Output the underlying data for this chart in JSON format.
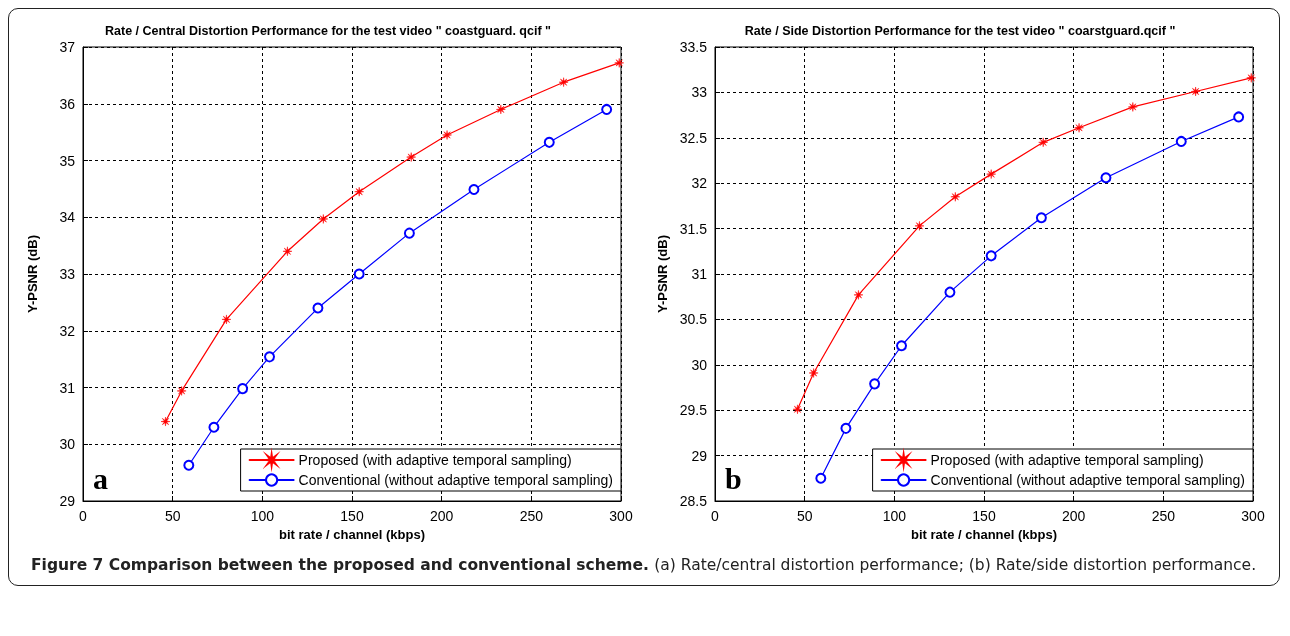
{
  "chart_data": [
    {
      "type": "line",
      "title": "Rate / Central Distortion Performance for the test video \" coastguard. qcif \"",
      "xlabel": "bit rate / channel (kbps)",
      "ylabel": "Y-PSNR (dB)",
      "xlim": [
        0,
        300
      ],
      "xticks": [
        0,
        50,
        100,
        150,
        200,
        250,
        300
      ],
      "ylim": [
        29,
        37
      ],
      "yticks": [
        29,
        30,
        31,
        32,
        33,
        34,
        35,
        36,
        37
      ],
      "grid": true,
      "legend": "bottom right",
      "line_style": "solid",
      "annotations": [
        "a",
        "Figure 7 Comparison between the proposed and conventional scheme.",
        "(a) Rate/central distortion performance; (b) Rate/side distortion performance."
      ],
      "series": [
        {
          "name": "Proposed (with adaptive temporal sampling)",
          "color": "#ff0000",
          "marker": "star",
          "x": [
            46,
            55,
            80,
            114,
            134,
            154,
            183,
            203,
            233,
            268,
            299
          ],
          "values": [
            30.4,
            30.94,
            32.2,
            33.4,
            33.97,
            34.45,
            35.06,
            35.45,
            35.9,
            36.38,
            36.72
          ]
        },
        {
          "name": "Conventional (without adaptive temporal sampling)",
          "color": "#0000ff",
          "marker": "circle",
          "x": [
            59,
            73,
            89,
            104,
            131,
            154,
            182,
            218,
            260,
            292
          ],
          "values": [
            29.63,
            30.3,
            30.98,
            31.54,
            32.4,
            33.0,
            33.72,
            34.49,
            35.32,
            35.9
          ]
        }
      ]
    },
    {
      "type": "line",
      "title": "Rate / Side Distortion Performance for the test video \" coarstguard.qcif \"",
      "xlabel": "bit rate / channel (kbps)",
      "ylabel": "Y-PSNR (dB)",
      "xlim": [
        0,
        300
      ],
      "xticks": [
        0,
        50,
        100,
        150,
        200,
        250,
        300
      ],
      "ylim": [
        28.5,
        33.5
      ],
      "yticks": [
        28.5,
        29,
        29.5,
        30,
        30.5,
        31,
        31.5,
        32,
        32.5,
        33,
        33.5
      ],
      "grid": true,
      "legend": "bottom right",
      "line_style": "solid",
      "annotations": [
        "b"
      ],
      "series": [
        {
          "name": "Proposed (with adaptive temporal sampling)",
          "color": "#ff0000",
          "marker": "star",
          "x": [
            46,
            55,
            80,
            114,
            134,
            154,
            183,
            203,
            233,
            268,
            299
          ],
          "values": [
            29.51,
            29.91,
            30.77,
            31.53,
            31.85,
            32.1,
            32.45,
            32.61,
            32.84,
            33.01,
            33.16
          ]
        },
        {
          "name": "Conventional (without adaptive temporal sampling)",
          "color": "#0000ff",
          "marker": "circle",
          "x": [
            59,
            73,
            89,
            104,
            131,
            154,
            182,
            218,
            260,
            292
          ],
          "values": [
            28.75,
            29.3,
            29.79,
            30.21,
            30.8,
            31.2,
            31.62,
            32.06,
            32.46,
            32.73
          ]
        }
      ]
    }
  ]
}
